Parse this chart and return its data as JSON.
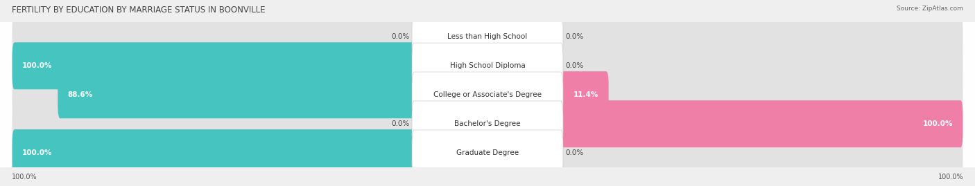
{
  "title": "FERTILITY BY EDUCATION BY MARRIAGE STATUS IN BOONVILLE",
  "source": "Source: ZipAtlas.com",
  "categories": [
    "Less than High School",
    "High School Diploma",
    "College or Associate's Degree",
    "Bachelor's Degree",
    "Graduate Degree"
  ],
  "married": [
    0.0,
    100.0,
    88.6,
    0.0,
    100.0
  ],
  "unmarried": [
    0.0,
    0.0,
    11.4,
    100.0,
    0.0
  ],
  "married_color": "#45c4c0",
  "unmarried_color": "#f07fa8",
  "married_light": "#aadede",
  "unmarried_light": "#f7c0d3",
  "background_color": "#efefef",
  "bar_bg_color": "#e2e2e2",
  "row_bg_color": "#e8e8e8",
  "title_fontsize": 8.5,
  "label_fontsize": 7.5,
  "legend_fontsize": 8,
  "axis_label_fontsize": 7
}
